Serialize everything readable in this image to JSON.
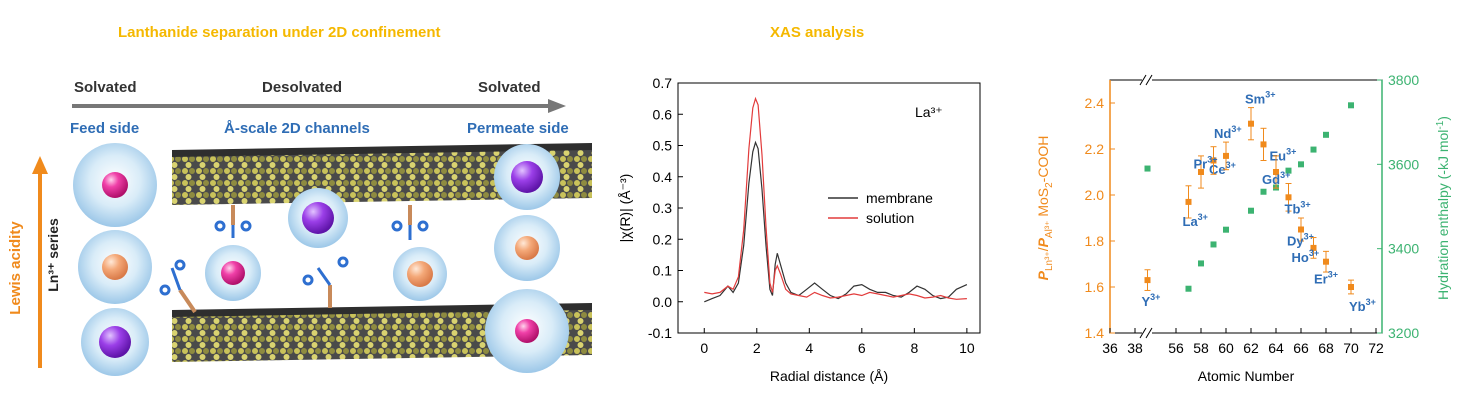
{
  "schematic": {
    "title": "Lanthanide separation under 2D confinement",
    "stage_solvated_left": "Solvated",
    "stage_desolvated": "Desolvated",
    "stage_solvated_right": "Solvated",
    "feed_side": "Feed side",
    "channels": "Å-scale 2D channels",
    "permeate_side": "Permeate side",
    "lewis_acidity": "Lewis acidity",
    "ln_series": "Ln³⁺ series"
  },
  "xas": {
    "title": "XAS analysis"
  },
  "colors": {
    "accent_orange": "#F08A1C",
    "title_yellow": "#F5B800",
    "label_blue": "#2F6DB5",
    "green_series": "#3CB371",
    "membrane_line": "#333333",
    "solution_line": "#E23B3B",
    "ion_pink": "#E8208C",
    "ion_peach": "#F0A070",
    "ion_purple": "#8A2BE2"
  },
  "chart_data": [
    {
      "type": "line",
      "annotation": "La³⁺",
      "xlabel": "Radial distance (Å)",
      "ylabel": "|χ(R)|  (Å⁻³)",
      "xlim": [
        -1,
        10.5
      ],
      "ylim": [
        -0.1,
        0.7
      ],
      "xticks": [
        0,
        2,
        4,
        6,
        8,
        10
      ],
      "yticks": [
        -0.1,
        0.0,
        0.1,
        0.2,
        0.3,
        0.4,
        0.5,
        0.6,
        0.7
      ],
      "legend_position": "center-right",
      "series": [
        {
          "name": "membrane",
          "color": "#333333",
          "points": [
            [
              0,
              0.0
            ],
            [
              0.3,
              0.01
            ],
            [
              0.6,
              0.02
            ],
            [
              0.9,
              0.05
            ],
            [
              1.1,
              0.03
            ],
            [
              1.3,
              0.06
            ],
            [
              1.5,
              0.18
            ],
            [
              1.7,
              0.38
            ],
            [
              1.85,
              0.48
            ],
            [
              1.95,
              0.51
            ],
            [
              2.05,
              0.49
            ],
            [
              2.2,
              0.36
            ],
            [
              2.35,
              0.18
            ],
            [
              2.5,
              0.04
            ],
            [
              2.6,
              0.02
            ],
            [
              2.7,
              0.12
            ],
            [
              2.78,
              0.155
            ],
            [
              2.9,
              0.12
            ],
            [
              3.1,
              0.06
            ],
            [
              3.3,
              0.03
            ],
            [
              3.6,
              0.02
            ],
            [
              3.9,
              0.04
            ],
            [
              4.2,
              0.06
            ],
            [
              4.5,
              0.04
            ],
            [
              4.8,
              0.02
            ],
            [
              5.1,
              0.01
            ],
            [
              5.4,
              0.025
            ],
            [
              5.7,
              0.05
            ],
            [
              6.0,
              0.055
            ],
            [
              6.3,
              0.04
            ],
            [
              6.6,
              0.03
            ],
            [
              6.9,
              0.03
            ],
            [
              7.2,
              0.02
            ],
            [
              7.5,
              0.015
            ],
            [
              7.8,
              0.03
            ],
            [
              8.1,
              0.05
            ],
            [
              8.4,
              0.04
            ],
            [
              8.7,
              0.02
            ],
            [
              9.0,
              0.01
            ],
            [
              9.3,
              0.015
            ],
            [
              9.6,
              0.04
            ],
            [
              10.0,
              0.055
            ]
          ]
        },
        {
          "name": "solution",
          "color": "#E23B3B",
          "points": [
            [
              0,
              0.03
            ],
            [
              0.3,
              0.025
            ],
            [
              0.6,
              0.03
            ],
            [
              0.9,
              0.05
            ],
            [
              1.1,
              0.04
            ],
            [
              1.3,
              0.08
            ],
            [
              1.5,
              0.23
            ],
            [
              1.7,
              0.49
            ],
            [
              1.85,
              0.62
            ],
            [
              1.95,
              0.65
            ],
            [
              2.05,
              0.63
            ],
            [
              2.2,
              0.47
            ],
            [
              2.35,
              0.24
            ],
            [
              2.5,
              0.06
            ],
            [
              2.6,
              0.03
            ],
            [
              2.7,
              0.1
            ],
            [
              2.78,
              0.115
            ],
            [
              2.9,
              0.09
            ],
            [
              3.1,
              0.04
            ],
            [
              3.3,
              0.025
            ],
            [
              3.6,
              0.02
            ],
            [
              3.9,
              0.015
            ],
            [
              4.2,
              0.03
            ],
            [
              4.5,
              0.02
            ],
            [
              4.8,
              0.012
            ],
            [
              5.1,
              0.015
            ],
            [
              5.4,
              0.02
            ],
            [
              5.7,
              0.025
            ],
            [
              6.0,
              0.02
            ],
            [
              6.3,
              0.03
            ],
            [
              6.6,
              0.025
            ],
            [
              6.9,
              0.02
            ],
            [
              7.2,
              0.015
            ],
            [
              7.5,
              0.02
            ],
            [
              7.8,
              0.025
            ],
            [
              8.1,
              0.02
            ],
            [
              8.4,
              0.012
            ],
            [
              8.7,
              0.015
            ],
            [
              9.0,
              0.02
            ],
            [
              9.3,
              0.012
            ],
            [
              9.6,
              0.008
            ],
            [
              10.0,
              0.01
            ]
          ]
        }
      ]
    },
    {
      "type": "scatter",
      "xlabel": "Atomic Number",
      "ylabel_left": "P_Ln³⁺/P_Al³⁺ MoS₂-COOH",
      "ylabel_left_parts": {
        "p1": "P",
        "s1": "Ln³⁺",
        "slash": "/",
        "p2": "P",
        "s2": "Al³⁺",
        "rest": " MoS",
        "sub2": "2",
        "tail": "-COOH"
      },
      "ylabel_right": "Hydration enthalpy (-kJ mol⁻¹)",
      "ylabel_right_parts": {
        "main": "Hydration enthalpy (-kJ mol",
        "sup": "-1",
        "close": ")"
      },
      "xlim": [
        36,
        72
      ],
      "x_axis_break": [
        40,
        55
      ],
      "xticks": [
        36,
        38,
        56,
        58,
        60,
        62,
        64,
        66,
        68,
        70,
        72
      ],
      "ylim_left": [
        1.4,
        2.5
      ],
      "yticks_left": [
        1.4,
        1.6,
        1.8,
        2.0,
        2.2,
        2.4
      ],
      "ylim_right": [
        3200,
        3800
      ],
      "yticks_right": [
        3200,
        3400,
        3600,
        3800
      ],
      "selectivity": [
        {
          "z": 39,
          "value": 1.63,
          "err": 0.045,
          "ion": "Y",
          "charge": "3+"
        },
        {
          "z": 57,
          "value": 1.97,
          "err": 0.07,
          "ion": "La",
          "charge": "3+"
        },
        {
          "z": 58,
          "value": 2.1,
          "err": 0.07,
          "ion": "Ce",
          "charge": "3+"
        },
        {
          "z": 59,
          "value": 2.15,
          "err": 0.06,
          "ion": "Pr",
          "charge": "3+"
        },
        {
          "z": 60,
          "value": 2.17,
          "err": 0.06,
          "ion": "Nd",
          "charge": "3+"
        },
        {
          "z": 62,
          "value": 2.31,
          "err": 0.07,
          "ion": "Sm",
          "charge": "3+"
        },
        {
          "z": 63,
          "value": 2.22,
          "err": 0.07,
          "ion": "Eu",
          "charge": "3+"
        },
        {
          "z": 64,
          "value": 2.1,
          "err": 0.07,
          "ion": "Gd",
          "charge": "3+"
        },
        {
          "z": 65,
          "value": 1.99,
          "err": 0.06,
          "ion": "Tb",
          "charge": "3+"
        },
        {
          "z": 66,
          "value": 1.85,
          "err": 0.05,
          "ion": "Dy",
          "charge": "3+"
        },
        {
          "z": 67,
          "value": 1.77,
          "err": 0.045,
          "ion": "Ho",
          "charge": "3+"
        },
        {
          "z": 68,
          "value": 1.71,
          "err": 0.045,
          "ion": "Er",
          "charge": "3+"
        },
        {
          "z": 70,
          "value": 1.6,
          "err": 0.03,
          "ion": "Yb",
          "charge": "3+"
        }
      ],
      "hydration_enthalpy": [
        {
          "z": 39,
          "value": 3590
        },
        {
          "z": 57,
          "value": 3305
        },
        {
          "z": 58,
          "value": 3365
        },
        {
          "z": 59,
          "value": 3410
        },
        {
          "z": 60,
          "value": 3445
        },
        {
          "z": 62,
          "value": 3490
        },
        {
          "z": 63,
          "value": 3535
        },
        {
          "z": 64,
          "value": 3545
        },
        {
          "z": 65,
          "value": 3585
        },
        {
          "z": 66,
          "value": 3600
        },
        {
          "z": 67,
          "value": 3635
        },
        {
          "z": 68,
          "value": 3670
        },
        {
          "z": 70,
          "value": 3740
        }
      ]
    }
  ]
}
